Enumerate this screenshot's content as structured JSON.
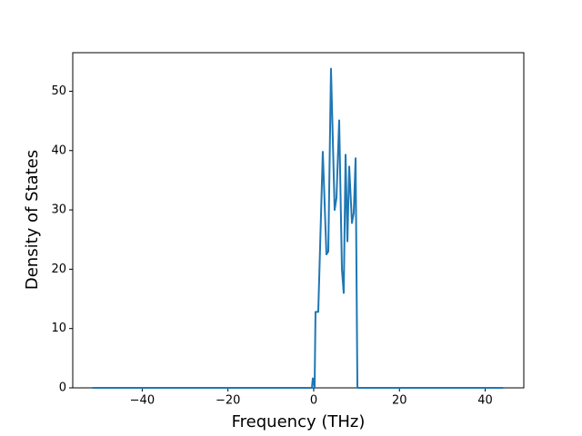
{
  "chart_data": {
    "type": "line",
    "x_label": "Frequency (THz)",
    "y_label": "Density of States",
    "x": [
      -51.6,
      -0.42,
      -0.21,
      0.21,
      0.42,
      1.06,
      2.12,
      2.97,
      3.4,
      4.03,
      4.88,
      5.31,
      5.94,
      6.58,
      7.0,
      7.43,
      7.86,
      8.28,
      8.92,
      9.34,
      9.77,
      10.19,
      44.2
    ],
    "series": [
      {
        "color": "#1f77b4",
        "values": [
          0,
          0,
          1.6,
          0,
          12.8,
          12.8,
          39.8,
          22.5,
          23,
          53.8,
          30,
          32,
          45.1,
          20,
          16,
          39.3,
          24.7,
          37.3,
          27.8,
          29.5,
          38.7,
          0,
          0
        ]
      }
    ],
    "xlim": [
      -56.2,
      49.0
    ],
    "ylim": [
      0,
      56.5
    ],
    "xticks": [
      {
        "value": -40,
        "label": "−40"
      },
      {
        "value": -20,
        "label": "−20"
      },
      0,
      20,
      40
    ],
    "yticks": [
      0,
      10,
      20,
      30,
      40,
      50
    ],
    "grid": false
  }
}
